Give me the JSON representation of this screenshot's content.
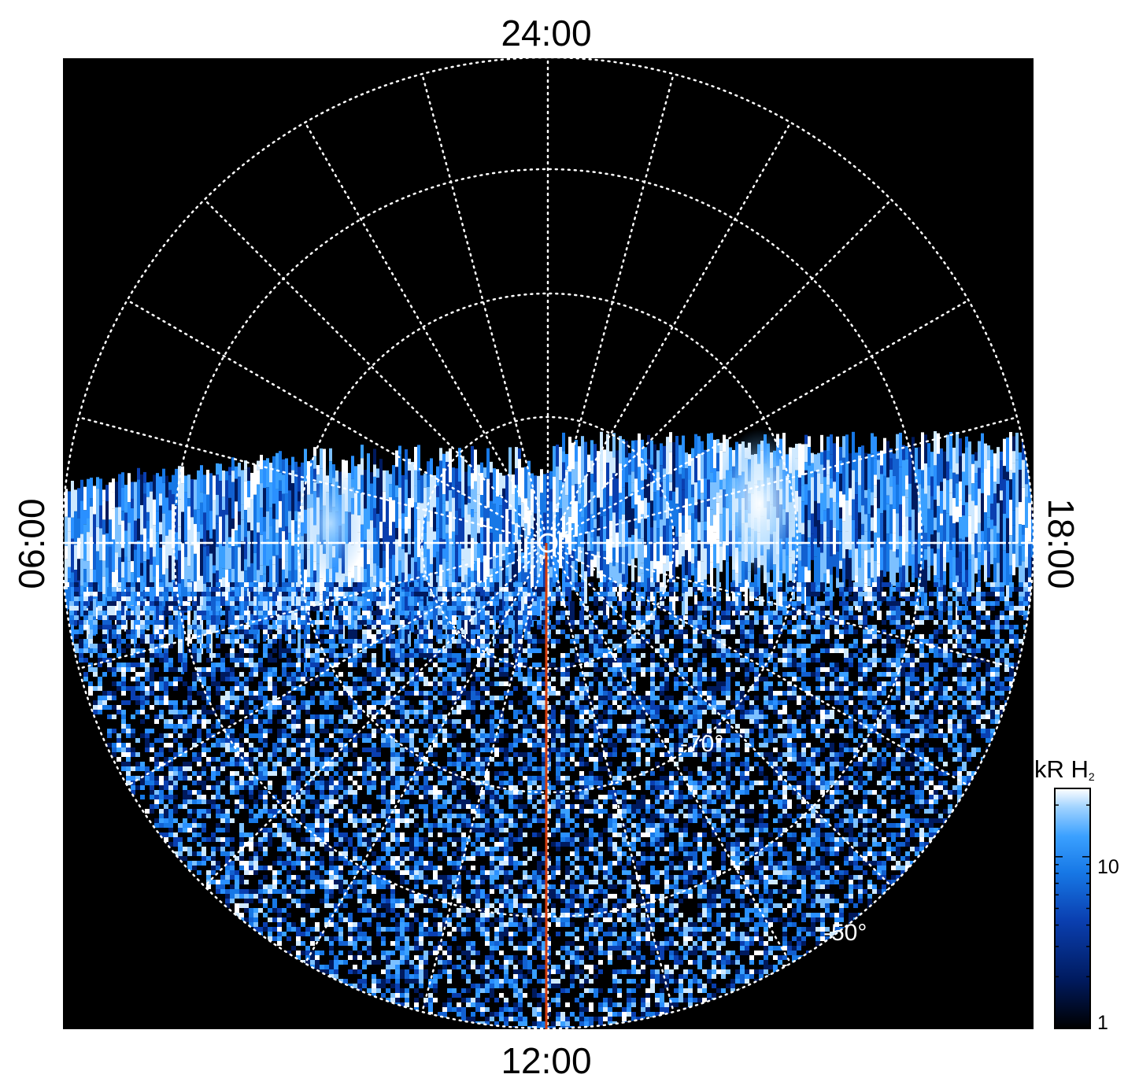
{
  "local_time_labels": {
    "top": "24:00",
    "bottom": "12:00",
    "left": "06:00",
    "right": "18:00"
  },
  "latitude_labels": {
    "inner": "-70°",
    "outer": "-50°"
  },
  "colorbar": {
    "title_main": "kR H",
    "title_sub": "2",
    "tick_10": "10",
    "tick_1": "1",
    "scale": "log",
    "range": [
      1,
      25
    ],
    "colors": [
      "#000000",
      "#001a5e",
      "#0a3fb0",
      "#1778e6",
      "#3aa0ff",
      "#9fd2ff",
      "#ffffff"
    ]
  },
  "colors": {
    "background": "#000000",
    "grid": "#ffffff",
    "meridian_line": "#d23a0a",
    "frame": "#ffffff"
  }
}
